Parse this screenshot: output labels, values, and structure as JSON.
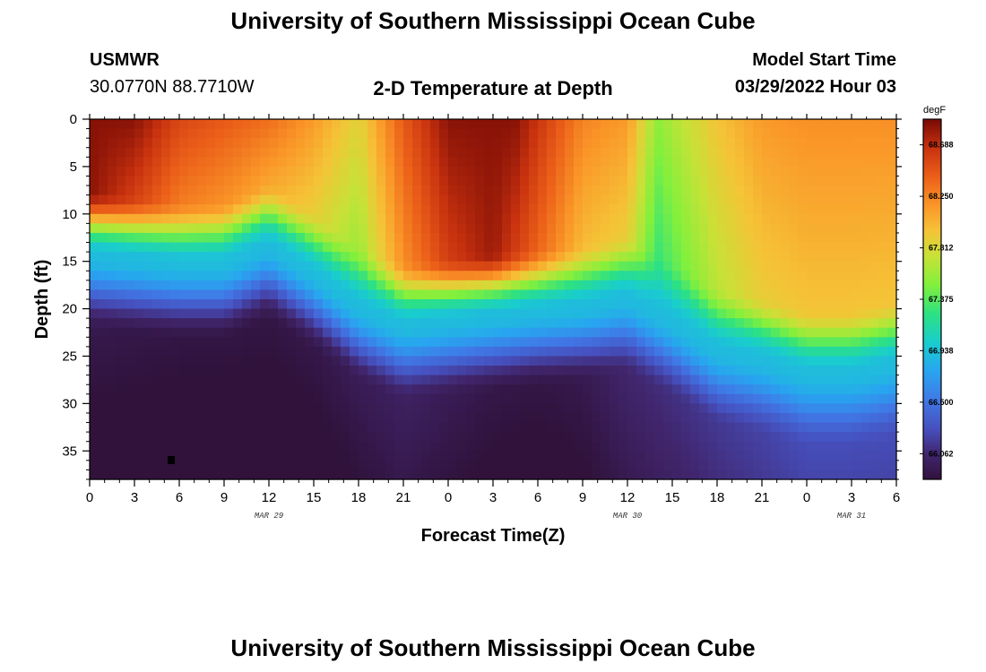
{
  "header": {
    "title": "University of Southern Mississippi Ocean Cube",
    "station": "USMWR",
    "coords": "30.0770N  88.7710W",
    "subtitle": "2-D Temperature at Depth",
    "start_label": "Model Start Time",
    "start_value": "03/29/2022 Hour 03"
  },
  "footer": {
    "title": "University of Southern Mississippi Ocean Cube"
  },
  "chart_data": {
    "type": "heatmap",
    "title": "2-D Temperature at Depth",
    "xlabel": "Forecast Time(Z)",
    "ylabel": "Depth (ft)",
    "xlim": [
      0,
      54
    ],
    "ylim": [
      0,
      38
    ],
    "x_ticks": [
      0,
      3,
      6,
      9,
      12,
      15,
      18,
      21,
      24,
      27,
      30,
      33,
      36,
      39,
      42,
      45,
      48,
      51,
      54
    ],
    "x_tick_labels": [
      "0",
      "3",
      "6",
      "9",
      "12",
      "15",
      "18",
      "21",
      "0",
      "3",
      "6",
      "9",
      "12",
      "15",
      "18",
      "21",
      "0",
      "3",
      "6"
    ],
    "y_ticks": [
      0,
      5,
      10,
      15,
      20,
      25,
      30,
      35
    ],
    "y_tick_labels": [
      "0",
      "5",
      "10",
      "15",
      "20",
      "25",
      "30",
      "35"
    ],
    "date_labels": [
      {
        "x": 12,
        "text": "MAR 29"
      },
      {
        "x": 36,
        "text": "MAR 30"
      },
      {
        "x": 51,
        "text": "MAR 31"
      }
    ],
    "colorbar": {
      "unit": "degF",
      "min": 65.844,
      "max": 68.906,
      "ticks": [
        66.062,
        66.5,
        66.938,
        67.375,
        67.812,
        68.25,
        68.688
      ],
      "tick_labels": [
        "66.062",
        "66.500",
        "66.938",
        "67.375",
        "67.812",
        "68.250",
        "68.688"
      ]
    },
    "thermocline_depth_ft": [
      [
        0,
        11.0
      ],
      [
        3,
        11.5
      ],
      [
        6,
        12.0
      ],
      [
        9,
        12.0
      ],
      [
        12,
        10.0
      ],
      [
        15,
        13.0
      ],
      [
        18,
        16.5
      ],
      [
        21,
        18.5
      ],
      [
        24,
        18.0
      ],
      [
        27,
        17.5
      ],
      [
        30,
        17.0
      ],
      [
        33,
        16.5
      ],
      [
        36,
        15.5
      ],
      [
        39,
        18.0
      ],
      [
        42,
        21.0
      ],
      [
        45,
        22.0
      ],
      [
        48,
        23.5
      ],
      [
        51,
        23.5
      ],
      [
        54,
        22.5
      ]
    ],
    "surface_temp_degF": [
      [
        0,
        68.85
      ],
      [
        3,
        68.6
      ],
      [
        6,
        68.3
      ],
      [
        9,
        68.2
      ],
      [
        12,
        68.1
      ],
      [
        15,
        67.9
      ],
      [
        18,
        67.6
      ],
      [
        21,
        68.2
      ],
      [
        24,
        68.6
      ],
      [
        27,
        68.8
      ],
      [
        30,
        68.4
      ],
      [
        33,
        68.0
      ],
      [
        36,
        67.9
      ],
      [
        38,
        67.3
      ],
      [
        40,
        67.5
      ],
      [
        42,
        67.7
      ],
      [
        45,
        67.9
      ],
      [
        48,
        67.95
      ],
      [
        51,
        67.95
      ],
      [
        54,
        67.95
      ]
    ],
    "bottom_temp_degF": [
      [
        0,
        65.92
      ],
      [
        3,
        65.9
      ],
      [
        6,
        65.88
      ],
      [
        9,
        65.88
      ],
      [
        12,
        65.88
      ],
      [
        15,
        65.9
      ],
      [
        18,
        65.95
      ],
      [
        21,
        66.0
      ],
      [
        24,
        65.95
      ],
      [
        27,
        65.9
      ],
      [
        30,
        65.88
      ],
      [
        33,
        65.92
      ],
      [
        36,
        66.05
      ],
      [
        39,
        66.1
      ],
      [
        42,
        66.15
      ],
      [
        45,
        66.2
      ],
      [
        48,
        66.25
      ],
      [
        51,
        66.25
      ],
      [
        54,
        66.25
      ]
    ]
  }
}
